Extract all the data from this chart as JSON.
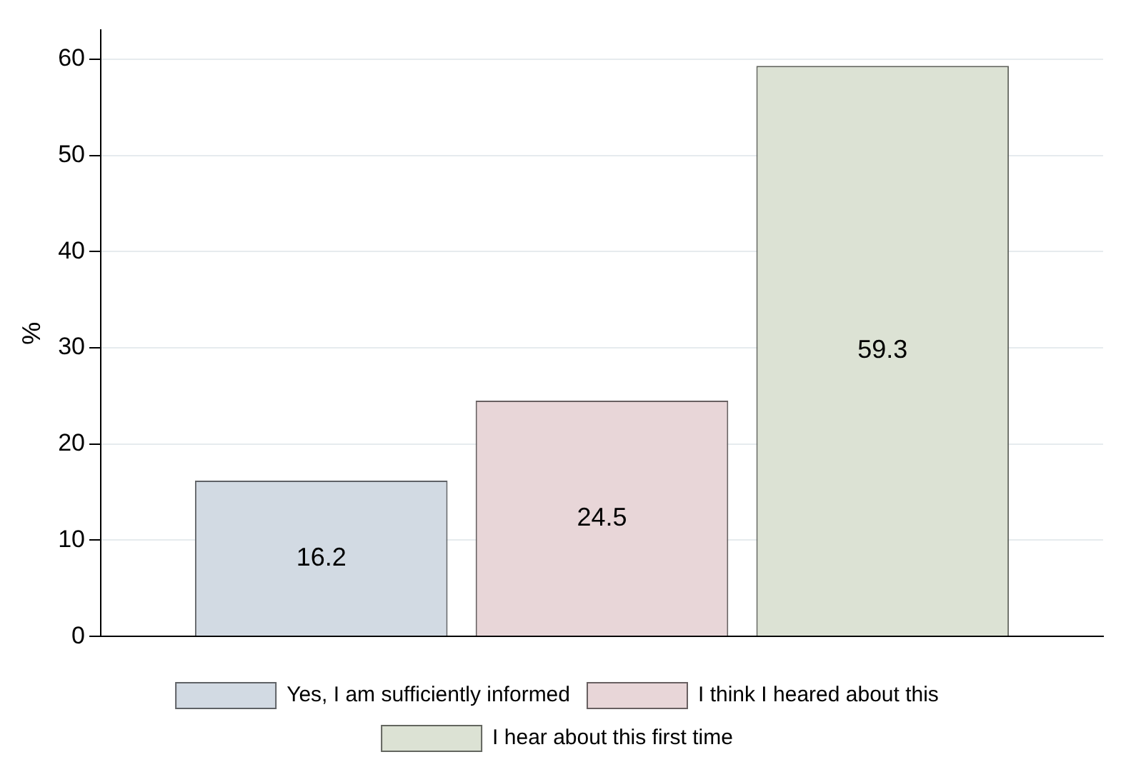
{
  "chart_data": {
    "type": "bar",
    "ylabel": "%",
    "categories": [
      null
    ],
    "series": [
      {
        "name": "Yes, I am sufficiently informed",
        "color": "#d2dae3",
        "values": [
          16.2
        ]
      },
      {
        "name": "I think I heared about this",
        "color": "#e8d6d8",
        "values": [
          24.5
        ]
      },
      {
        "name": "I hear about this first time",
        "color": "#dce2d4",
        "values": [
          59.3
        ]
      }
    ],
    "ylim": [
      0,
      63
    ],
    "yticks": [
      0,
      10,
      20,
      30,
      40,
      50,
      60
    ],
    "grid": "y",
    "legend": "bottom",
    "data_labels": true
  }
}
